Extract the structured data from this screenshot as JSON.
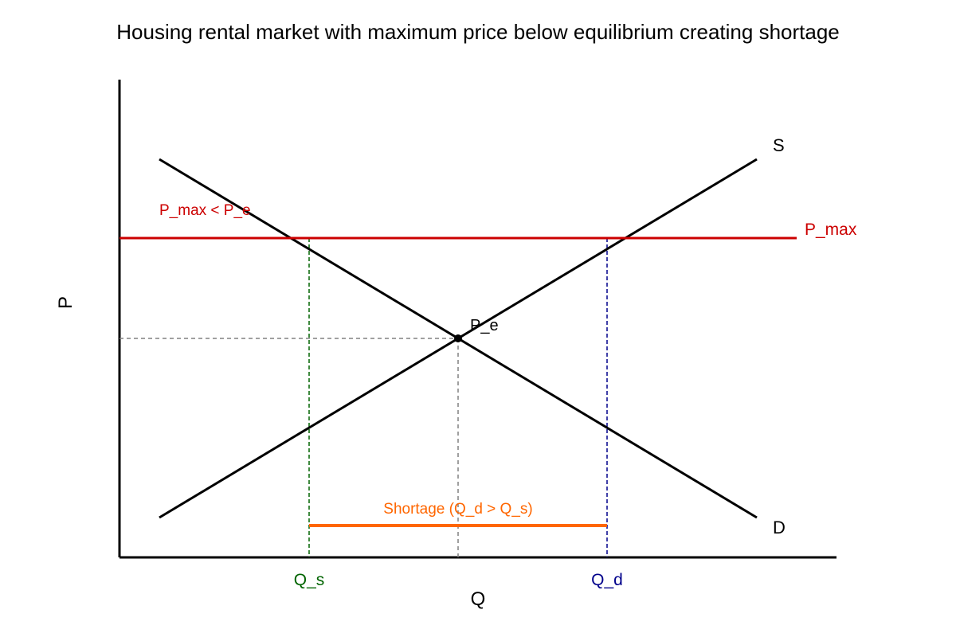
{
  "title": "Housing rental market with maximum price below equilibrium creating shortage",
  "axes": {
    "x_label": "Q",
    "y_label": "P"
  },
  "curves": {
    "supply_label": "S",
    "demand_label": "D"
  },
  "equilibrium": {
    "label": "P_e"
  },
  "price_ceiling": {
    "label": "P_max",
    "note": "P_max < P_e"
  },
  "quantities": {
    "qs_label": "Q_s",
    "qd_label": "Q_d"
  },
  "shortage": {
    "label": "Shortage (Q_d > Q_s)"
  },
  "colors": {
    "curve": "#000000",
    "ceiling": "#cc0000",
    "qs": "#006400",
    "qd": "#00008b",
    "shortage": "#ff6600",
    "guide": "#808080"
  }
}
